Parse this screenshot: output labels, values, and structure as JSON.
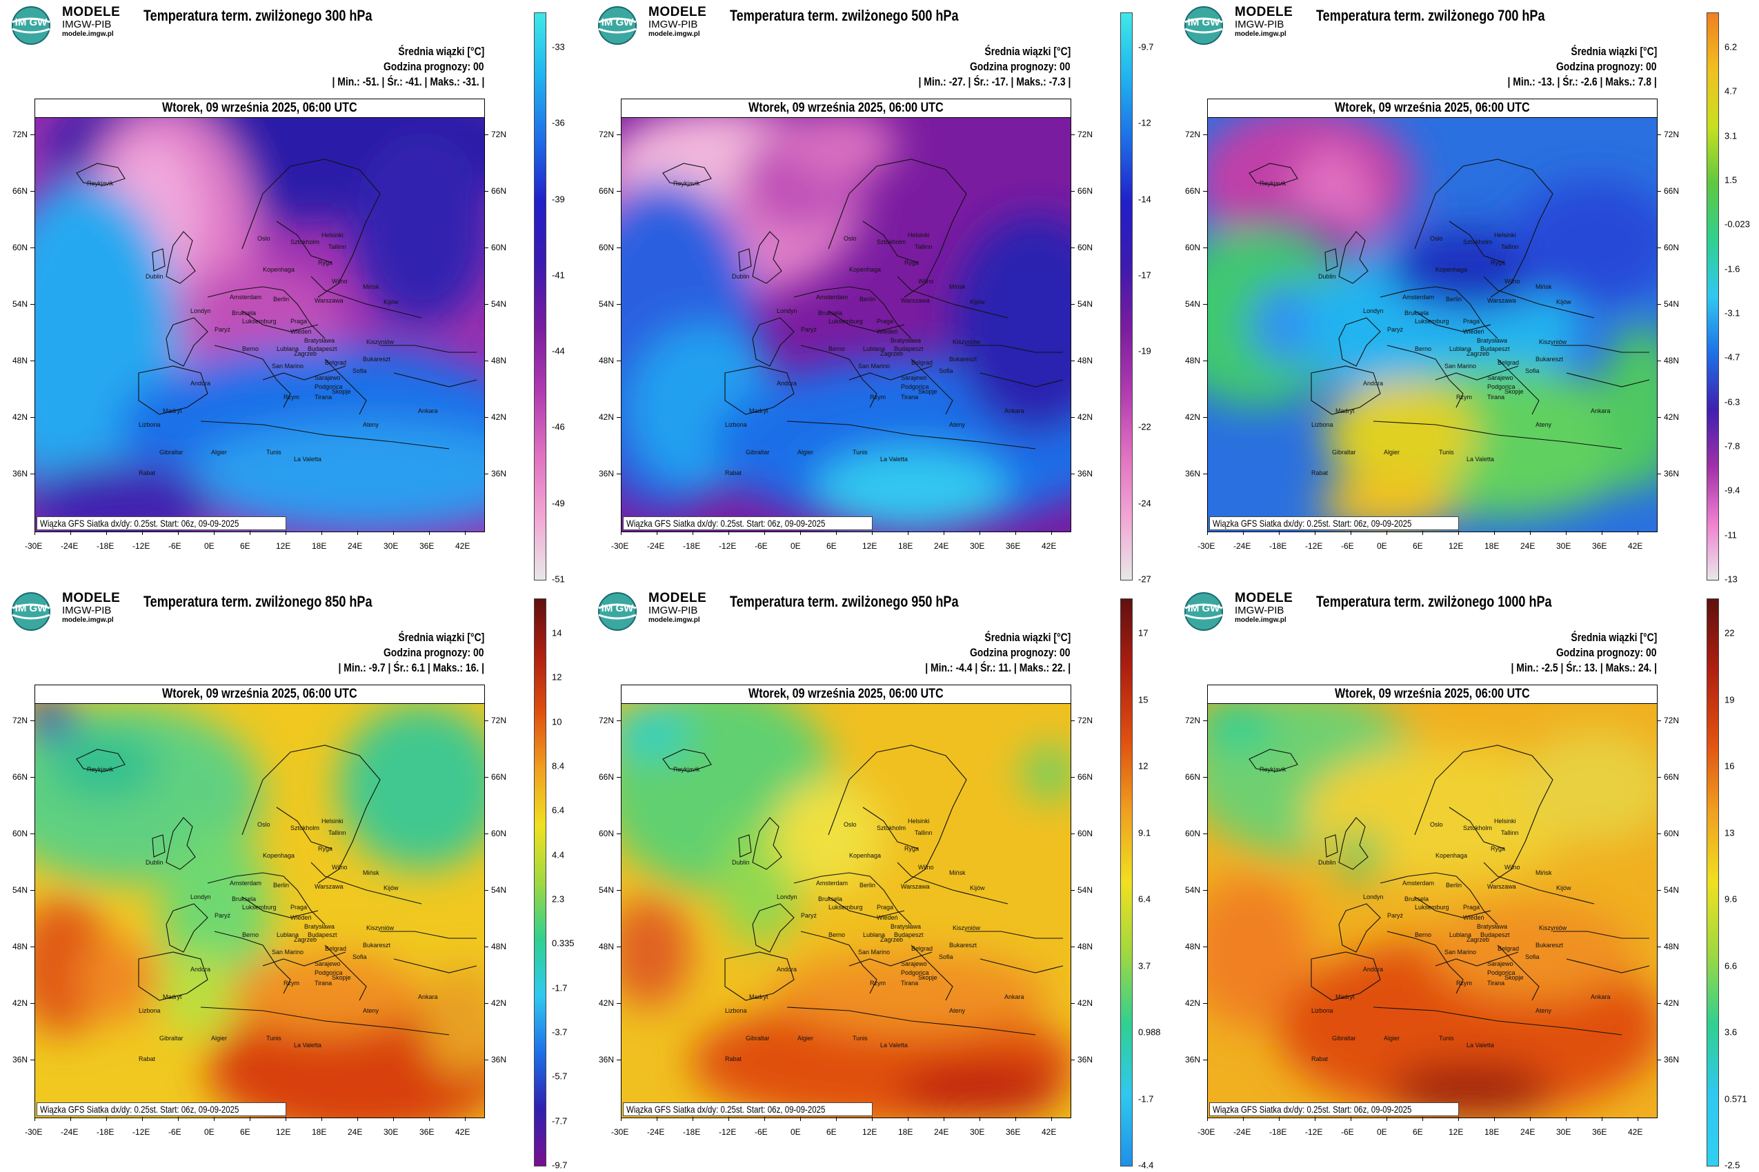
{
  "logo": {
    "line1": "MODELE",
    "line2": "IMGW-PIB",
    "line3": "modele.imgw.pl",
    "badge": "IM GW"
  },
  "common": {
    "mean_label": "Średnia wiązki [°C]",
    "forecast_hour": "Godzina prognozy: 00",
    "date": "Wtorek, 09 września 2025, 06:00 UTC",
    "credit": "Wiązka GFS Siatka dx/dy: 0.25st. Start: 06z, 09-09-2025",
    "lon_labels": [
      "-30E",
      "-24E",
      "-18E",
      "-12E",
      "-6E",
      "0E",
      "6E",
      "12E",
      "18E",
      "24E",
      "30E",
      "36E",
      "42E"
    ],
    "lat_labels": [
      "72N",
      "66N",
      "60N",
      "54N",
      "48N",
      "42N",
      "36N"
    ],
    "cities": [
      "Oslo",
      "Helsinki",
      "Sztokholm",
      "Tallinn",
      "Ryga",
      "Kopenhaga",
      "Wilno",
      "Mińsk",
      "Amsterdam",
      "Berlin",
      "Warszawa",
      "Kijów",
      "Londyn",
      "Bruksela",
      "Luksemburg",
      "Paryż",
      "Praga",
      "Wiedeń",
      "Bratysława",
      "Budapeszt",
      "Kiszyniów",
      "Berno",
      "Lublana",
      "Zagrzeb",
      "Belgrad",
      "Bukareszt",
      "Sofia",
      "San Marino",
      "Sarajewo",
      "Podgorica",
      "Skopje",
      "Tirana",
      "Andora",
      "Rzym",
      "Madryt",
      "Lizbona",
      "Ateny",
      "Ankara",
      "Gibraltar",
      "Algier",
      "Tunis",
      "La Valetta",
      "Rabat",
      "Dublin",
      "Reykjavik"
    ]
  },
  "panels": [
    {
      "title": "Temperatura term. zwilżonego 300 hPa",
      "stats": "| Min.:   -51. | Śr.:   -41. | Maks.:   -31. |",
      "colorbar": [
        "-33",
        "-36",
        "-39",
        "-41",
        "-44",
        "-46",
        "-49",
        "-51"
      ]
    },
    {
      "title": "Temperatura term. zwilżonego 500 hPa",
      "stats": "| Min.:   -27. | Śr.:   -17. | Maks.:   -7.3 |",
      "colorbar": [
        "-9.7",
        "-12",
        "-14",
        "-17",
        "-19",
        "-22",
        "-24",
        "-27"
      ]
    },
    {
      "title": "Temperatura term. zwilżonego 700 hPa",
      "stats": "| Min.:   -13. | Śr.:   -2.6 | Maks.:   7.8 |",
      "colorbar": [
        "6.2",
        "4.7",
        "3.1",
        "1.5",
        "-0.023",
        "-1.6",
        "-3.1",
        "-4.7",
        "-6.3",
        "-7.8",
        "-9.4",
        "-11",
        "-13"
      ]
    },
    {
      "title": "Temperatura term. zwilżonego 850 hPa",
      "stats": "| Min.:   -9.7 | Śr.:   6.1 | Maks.:   16. |",
      "colorbar": [
        "14",
        "12",
        "10",
        "8.4",
        "6.4",
        "4.4",
        "2.3",
        "0.335",
        "-1.7",
        "-3.7",
        "-5.7",
        "-7.7",
        "-9.7"
      ]
    },
    {
      "title": "Temperatura term. zwilżonego 950 hPa",
      "stats": "| Min.:   -4.4 | Śr.:   11. | Maks.:   22. |",
      "colorbar": [
        "17",
        "15",
        "12",
        "9.1",
        "6.4",
        "3.7",
        "0.988",
        "-1.7",
        "-4.4"
      ]
    },
    {
      "title": "Temperatura term. zwilżonego 1000 hPa",
      "stats": "| Min.:   -2.5 | Śr.:   13. | Maks.:   24. |",
      "colorbar": [
        "22",
        "19",
        "16",
        "13",
        "9.6",
        "6.6",
        "3.6",
        "0.571",
        "-2.5"
      ]
    }
  ],
  "colors": {
    "cold_scale": [
      "#e8e8e8",
      "#f2a6d4",
      "#e070c0",
      "#b03ab0",
      "#7a1ca0",
      "#3c1ab0",
      "#2020c8",
      "#1e6ee8",
      "#20b4f0",
      "#40e8e8"
    ],
    "mid_scale": [
      "#e8e8e8",
      "#f080d0",
      "#a030a8",
      "#4020b0",
      "#1e70e8",
      "#30c8f0",
      "#30d090",
      "#60c840",
      "#c8e020",
      "#f0c020",
      "#f08020"
    ],
    "warm_scale": [
      "#7a1090",
      "#3020b0",
      "#1e70e8",
      "#30c8f0",
      "#30d090",
      "#a0d840",
      "#f0e020",
      "#f0a020",
      "#e05010",
      "#b02010",
      "#601010"
    ]
  }
}
